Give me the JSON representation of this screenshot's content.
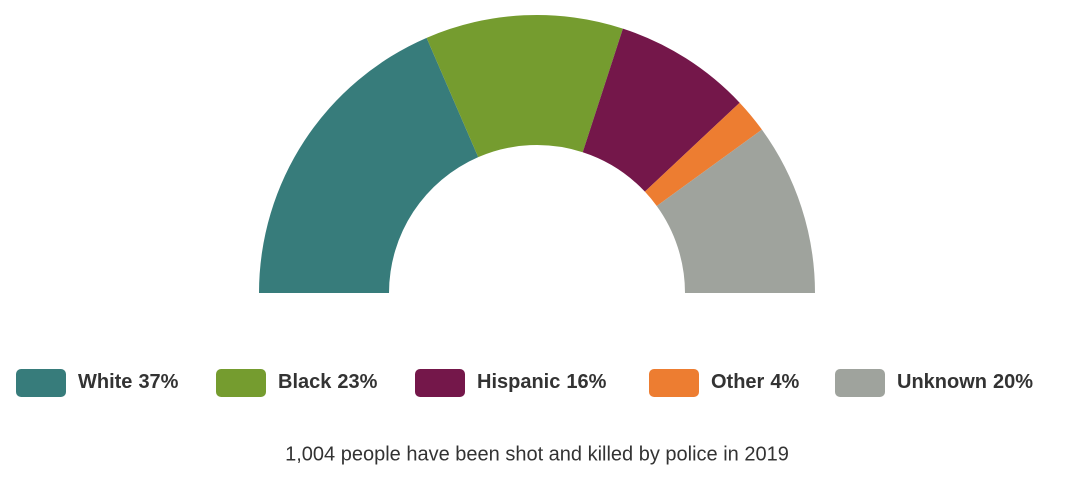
{
  "chart_data": {
    "type": "donut",
    "categories": [
      "White",
      "Black",
      "Hispanic",
      "Other",
      "Unknown"
    ],
    "values": [
      37,
      23,
      16,
      4,
      20
    ],
    "value_labels": [
      "37%",
      "23%",
      "16%",
      "4%",
      "20%"
    ],
    "colors": [
      "#377c7b",
      "#759c2f",
      "#74174a",
      "#ed7d31",
      "#9fa39d"
    ],
    "caption": "1,004 people have been shot and killed by police in 2019"
  }
}
